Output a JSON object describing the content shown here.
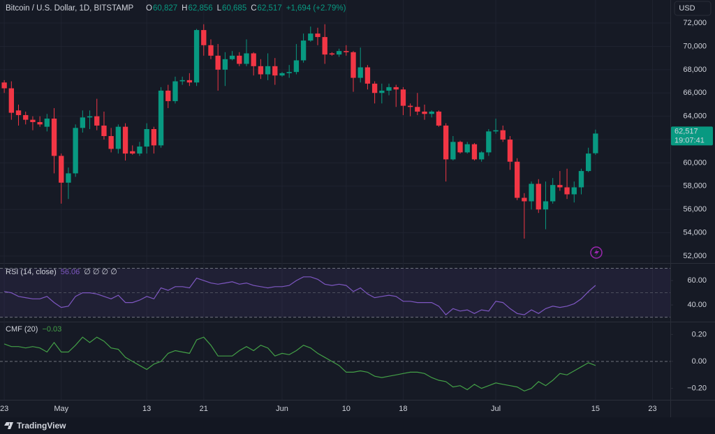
{
  "header": {
    "symbol": "Bitcoin / U.S. Dollar, 1D, BITSTAMP",
    "ohlc": [
      {
        "key": "O",
        "value": "60,827"
      },
      {
        "key": "H",
        "value": "62,856"
      },
      {
        "key": "L",
        "value": "60,685"
      },
      {
        "key": "C",
        "value": "62,517"
      }
    ],
    "change": "+1,694 (+2.79%)",
    "currency": "USD"
  },
  "footer": {
    "brand": "TradingView"
  },
  "chart_data": [
    {
      "type": "candlestick",
      "up_color": "#089981",
      "down_color": "#f23645",
      "xlim": [
        -0.6,
        93.5
      ],
      "ylim": [
        51520,
        73980
      ],
      "yticks": [
        {
          "value": 52000,
          "label": "52,000"
        },
        {
          "value": 54000,
          "label": "54,000"
        },
        {
          "value": 56000,
          "label": "56,000"
        },
        {
          "value": 58000,
          "label": "58,000"
        },
        {
          "value": 60000,
          "label": "60,000"
        },
        {
          "value": 62000,
          "label": "62,000"
        },
        {
          "value": 64000,
          "label": "64,000"
        },
        {
          "value": 66000,
          "label": "66,000"
        },
        {
          "value": 68000,
          "label": "68,000"
        },
        {
          "value": 70000,
          "label": "70,000"
        },
        {
          "value": 72000,
          "label": "72,000"
        }
      ],
      "grid": true,
      "last_price": {
        "value": 62517,
        "label": "62,517"
      },
      "countdown": "19:07:41",
      "open": [
        66900,
        66400,
        64500,
        64100,
        63700,
        63500,
        63100,
        63800,
        60600,
        58300,
        59100,
        63000,
        63900,
        64000,
        63200,
        62300,
        61200,
        63100,
        61000,
        60800,
        61400,
        62900,
        61500,
        66200,
        65300,
        67000,
        67100,
        66900,
        71400,
        70100,
        69200,
        68000,
        68900,
        69200,
        68500,
        69400,
        68300,
        67600,
        68300,
        67500,
        67700,
        67800,
        68800,
        70500,
        71100,
        70800,
        69400,
        69300,
        69600,
        69500,
        67300,
        68200,
        66800,
        66000,
        66200,
        66500,
        66300,
        64900,
        64800,
        64400,
        64200,
        64400,
        63200,
        60300,
        61800,
        60900,
        61600,
        60300,
        60900,
        62700,
        62800,
        62000,
        60100,
        57000,
        56700,
        58200,
        56000,
        56700,
        58100,
        57900,
        57300,
        57900,
        59300,
        60827
      ],
      "high": [
        67100,
        67000,
        65000,
        64400,
        64000,
        64000,
        64200,
        64700,
        60800,
        59600,
        63300,
        64500,
        64500,
        65500,
        64400,
        63000,
        63300,
        63400,
        61500,
        61800,
        63400,
        63100,
        66500,
        66700,
        67400,
        67400,
        67700,
        71500,
        71900,
        70600,
        70200,
        69500,
        69600,
        69500,
        70600,
        69500,
        68900,
        69400,
        69000,
        67800,
        68400,
        70200,
        71100,
        71700,
        71600,
        71900,
        69500,
        69800,
        70100,
        69600,
        69900,
        68400,
        67000,
        66800,
        66800,
        66700,
        66500,
        65100,
        66000,
        65000,
        64500,
        64500,
        63400,
        62300,
        61900,
        61800,
        61700,
        61000,
        62900,
        63800,
        63200,
        62300,
        60400,
        57400,
        58400,
        58600,
        58400,
        58700,
        59300,
        59500,
        58400,
        59500,
        61300,
        62856
      ],
      "low": [
        66000,
        63700,
        63200,
        63300,
        62800,
        63100,
        62700,
        59100,
        56500,
        56900,
        58800,
        62600,
        62900,
        62800,
        62000,
        60900,
        60800,
        60200,
        60700,
        60600,
        60800,
        60800,
        61300,
        64700,
        65100,
        66700,
        66600,
        66600,
        69200,
        68900,
        66200,
        66600,
        68800,
        68300,
        68300,
        67500,
        67200,
        67100,
        66700,
        67400,
        67300,
        67600,
        68600,
        70400,
        70100,
        68500,
        69200,
        69100,
        69200,
        66100,
        66900,
        66300,
        65100,
        65100,
        65800,
        64800,
        64100,
        64000,
        64100,
        63700,
        63900,
        63100,
        58400,
        60200,
        60800,
        60800,
        60200,
        60100,
        60600,
        62500,
        61800,
        59400,
        56800,
        53500,
        56000,
        55700,
        54300,
        56500,
        57600,
        56900,
        56600,
        57300,
        59200,
        60685
      ],
      "close": [
        66400,
        64300,
        64100,
        63700,
        63500,
        63300,
        63800,
        60600,
        58300,
        59100,
        63000,
        63900,
        64000,
        63200,
        62300,
        61200,
        63100,
        60800,
        60800,
        61400,
        62900,
        61500,
        66200,
        65300,
        67000,
        67100,
        66900,
        71400,
        70100,
        69200,
        68000,
        68900,
        69200,
        68500,
        69400,
        68300,
        67600,
        68300,
        67500,
        67700,
        67800,
        68800,
        70500,
        71100,
        70800,
        69300,
        69300,
        69600,
        69500,
        67300,
        68200,
        66800,
        66000,
        66200,
        66500,
        66300,
        64900,
        64800,
        64400,
        64200,
        64400,
        63200,
        60300,
        61800,
        60900,
        61600,
        60300,
        60900,
        62700,
        62800,
        62000,
        60100,
        57000,
        56700,
        58200,
        56000,
        56700,
        58100,
        57900,
        57300,
        57900,
        59300,
        60800,
        62517
      ]
    },
    {
      "type": "line",
      "title": "RSI (14, close)",
      "legend_value": "56.06",
      "extra": "∅ ∅ ∅ ∅",
      "color": "#7e57c2",
      "xlim": [
        -0.6,
        93.5
      ],
      "ylim": [
        26.9,
        72.6
      ],
      "yticks": [
        {
          "value": 40,
          "label": "40.00"
        },
        {
          "value": 60,
          "label": "60.00"
        }
      ],
      "bands": [
        70,
        50,
        30
      ],
      "band_color": "#7e57c2",
      "values": [
        51,
        50,
        47,
        46,
        45,
        45,
        47,
        42,
        38,
        39,
        47,
        50,
        50,
        49,
        47,
        45,
        48,
        42,
        42,
        44,
        47,
        45,
        54,
        52,
        55,
        55,
        54,
        62,
        60,
        58,
        57,
        58,
        59,
        57,
        58,
        56,
        55,
        54,
        55,
        55,
        56,
        60,
        63,
        63,
        61,
        57,
        56,
        57,
        56,
        51,
        54,
        49,
        46,
        47,
        48,
        47,
        43,
        43,
        42,
        42,
        42,
        39,
        32,
        37,
        35,
        36,
        33,
        36,
        35,
        43,
        42,
        37,
        33,
        32,
        36,
        33,
        37,
        39,
        38,
        39,
        41,
        45,
        51,
        56.06
      ]
    },
    {
      "type": "line",
      "title": "CMF (20)",
      "legend_value": "−0.03",
      "color": "#43a047",
      "xlim": [
        -0.6,
        93.5
      ],
      "ylim": [
        -0.28,
        0.29
      ],
      "yticks": [
        {
          "value": -0.2,
          "label": "−0.20"
        },
        {
          "value": 0,
          "label": "0.00"
        },
        {
          "value": 0.2,
          "label": "0.20"
        }
      ],
      "bands": [
        0
      ],
      "xticks": [
        {
          "value": 0,
          "label": "23"
        },
        {
          "value": 8,
          "label": "May"
        },
        {
          "value": 20,
          "label": "13"
        },
        {
          "value": 28,
          "label": "21"
        },
        {
          "value": 39,
          "label": "Jun"
        },
        {
          "value": 48,
          "label": "10"
        },
        {
          "value": 56,
          "label": "18"
        },
        {
          "value": 69,
          "label": "Jul"
        },
        {
          "value": 83,
          "label": "15"
        },
        {
          "value": 91,
          "label": "23"
        }
      ],
      "values": [
        0.13,
        0.11,
        0.11,
        0.1,
        0.11,
        0.1,
        0.07,
        0.14,
        0.07,
        0.07,
        0.12,
        0.18,
        0.14,
        0.18,
        0.15,
        0.1,
        0.09,
        0.03,
        0.0,
        -0.03,
        -0.06,
        -0.02,
        0.0,
        0.06,
        0.08,
        0.07,
        0.06,
        0.16,
        0.18,
        0.12,
        0.04,
        0.04,
        0.04,
        0.08,
        0.11,
        0.08,
        0.12,
        0.1,
        0.04,
        0.06,
        0.05,
        0.08,
        0.12,
        0.1,
        0.06,
        0.03,
        0.0,
        -0.03,
        -0.08,
        -0.08,
        -0.07,
        -0.08,
        -0.11,
        -0.12,
        -0.11,
        -0.1,
        -0.09,
        -0.08,
        -0.08,
        -0.09,
        -0.12,
        -0.14,
        -0.15,
        -0.19,
        -0.18,
        -0.21,
        -0.17,
        -0.2,
        -0.18,
        -0.16,
        -0.17,
        -0.18,
        -0.19,
        -0.22,
        -0.2,
        -0.15,
        -0.18,
        -0.14,
        -0.09,
        -0.1,
        -0.07,
        -0.04,
        -0.01,
        -0.03
      ]
    }
  ]
}
